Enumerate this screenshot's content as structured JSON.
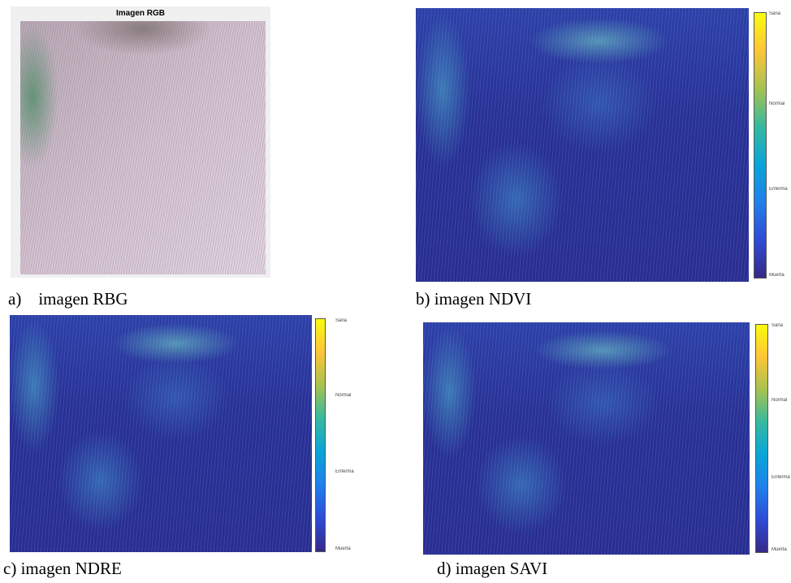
{
  "panels": [
    {
      "title": "Imagen RGB",
      "letter": "a)",
      "caption": "imagen RBG"
    },
    {
      "letter": "b)",
      "caption": "imagen NDVI",
      "colorbar": [
        "Sana",
        "Normal",
        "Enferma",
        "Muerta"
      ]
    },
    {
      "letter": "c)",
      "caption": "imagen NDRE",
      "colorbar": [
        "Sana",
        "Normal",
        "Enferma",
        "Muerta"
      ]
    },
    {
      "letter": "d)",
      "caption": "imagen SAVI",
      "colorbar": [
        "Sana",
        "Normal",
        "Enferma",
        "Muerta"
      ]
    }
  ]
}
